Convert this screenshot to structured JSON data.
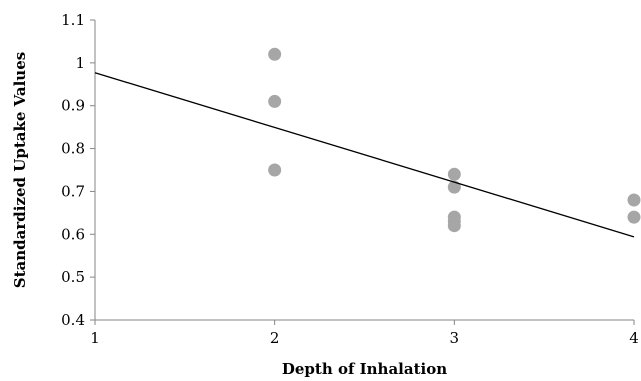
{
  "chart_data": {
    "type": "scatter",
    "title": "",
    "xlabel": "Depth of Inhalation",
    "ylabel": "Standardized Uptake Values",
    "xlim": [
      1,
      4
    ],
    "ylim": [
      0.4,
      1.1
    ],
    "x_ticks": [
      "1",
      "2",
      "3",
      "4"
    ],
    "y_ticks": [
      "0.4",
      "0.5",
      "0.6",
      "0.7",
      "0.8",
      "0.9",
      "1",
      "1.1"
    ],
    "grid": false,
    "legend": "none",
    "series": [
      {
        "points": [
          {
            "x": 2,
            "y": 1.02
          },
          {
            "x": 2,
            "y": 0.91
          },
          {
            "x": 2,
            "y": 0.75
          },
          {
            "x": 3,
            "y": 0.74
          },
          {
            "x": 3,
            "y": 0.71
          },
          {
            "x": 3,
            "y": 0.64
          },
          {
            "x": 3,
            "y": 0.63
          },
          {
            "x": 3,
            "y": 0.62
          },
          {
            "x": 4,
            "y": 0.68
          },
          {
            "x": 4,
            "y": 0.64
          }
        ],
        "color": "#a6a6a6"
      }
    ],
    "trendline": {
      "type": "linear",
      "start": {
        "x": 1,
        "y": 0.977
      },
      "end": {
        "x": 4,
        "y": 0.594
      },
      "color": "#000000"
    }
  }
}
